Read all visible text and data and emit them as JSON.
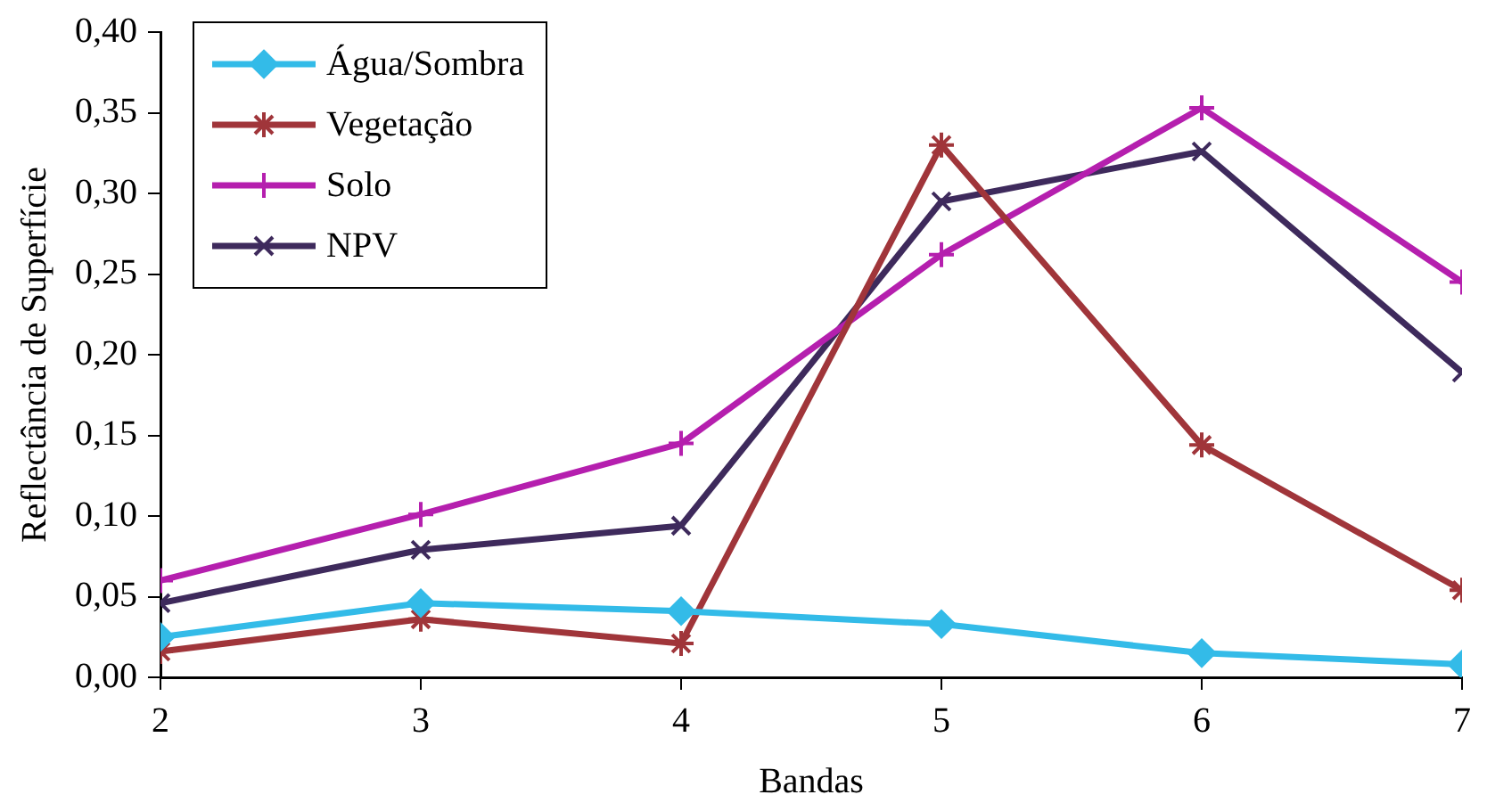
{
  "chart_data": {
    "type": "line",
    "xlabel": "Bandas",
    "ylabel": "Reflectância de Superfície",
    "x": [
      2,
      3,
      4,
      5,
      6,
      7
    ],
    "series": [
      {
        "name": "Água/Sombra",
        "color": "#33bbe8",
        "marker": "diamond",
        "values": [
          0.025,
          0.046,
          0.041,
          0.033,
          0.015,
          0.008
        ]
      },
      {
        "name": "Vegetação",
        "color": "#a0353a",
        "marker": "cross",
        "values": [
          0.016,
          0.036,
          0.021,
          0.33,
          0.144,
          0.054
        ]
      },
      {
        "name": "Solo",
        "color": "#b51fae",
        "marker": "cross",
        "values": [
          0.06,
          0.101,
          0.145,
          0.262,
          0.353,
          0.245
        ]
      },
      {
        "name": "NPV",
        "color": "#3e2a5c",
        "marker": "cross",
        "values": [
          0.046,
          0.079,
          0.094,
          0.295,
          0.326,
          0.189
        ]
      }
    ],
    "xlim": [
      2,
      7
    ],
    "xticks": [
      2,
      3,
      4,
      5,
      6,
      7
    ],
    "ylim": [
      0,
      0.4
    ],
    "yticks": [
      {
        "value": 0,
        "label": "0,00"
      },
      {
        "value": 0.05,
        "label": "0,05"
      },
      {
        "value": 0.1,
        "label": "0,10"
      },
      {
        "value": 0.15,
        "label": "0,15"
      },
      {
        "value": 0.2,
        "label": "0,20"
      },
      {
        "value": 0.25,
        "label": "0,25"
      },
      {
        "value": 0.3,
        "label": "0,30"
      },
      {
        "value": 0.35,
        "label": "0,35"
      },
      {
        "value": 0.4,
        "label": "0,40"
      }
    ],
    "grid": false,
    "legend": "top left",
    "line_style": "solid"
  }
}
